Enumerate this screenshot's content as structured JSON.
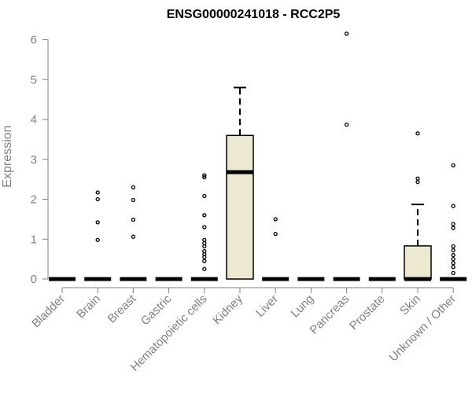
{
  "chart_data": {
    "type": "box",
    "title": "ENSG00000241018 - RCC2P5",
    "ylabel": "Expression",
    "xlabel": "",
    "ylim": [
      0,
      6.2
    ],
    "yticks": [
      0,
      1,
      2,
      3,
      4,
      5,
      6
    ],
    "grid": false,
    "box_fill": "#EDE8D0",
    "categories": [
      "Bladder",
      "Brain",
      "Breast",
      "Gastric",
      "Hematopoietic cells",
      "Kidney",
      "Liver",
      "Lung",
      "Pancreas",
      "Prostate",
      "Skin",
      "Unknown / Other"
    ],
    "series": [
      {
        "category": "Bladder",
        "q1": 0,
        "median": 0,
        "q3": 0,
        "whisker_low": 0,
        "whisker_high": 0,
        "outliers": []
      },
      {
        "category": "Brain",
        "q1": 0,
        "median": 0,
        "q3": 0,
        "whisker_low": 0,
        "whisker_high": 0,
        "outliers": [
          0.98,
          1.42,
          2.0,
          2.17
        ]
      },
      {
        "category": "Breast",
        "q1": 0,
        "median": 0,
        "q3": 0,
        "whisker_low": 0,
        "whisker_high": 0,
        "outliers": [
          1.06,
          1.49,
          1.98,
          2.3
        ]
      },
      {
        "category": "Gastric",
        "q1": 0,
        "median": 0,
        "q3": 0,
        "whisker_low": 0,
        "whisker_high": 0,
        "outliers": []
      },
      {
        "category": "Hematopoietic cells",
        "q1": 0,
        "median": 0,
        "q3": 0,
        "whisker_low": 0,
        "whisker_high": 0,
        "outliers": [
          0.25,
          0.45,
          0.55,
          0.62,
          0.7,
          0.82,
          0.9,
          0.98,
          1.3,
          1.6,
          2.08,
          2.55,
          2.6
        ]
      },
      {
        "category": "Kidney",
        "q1": 0,
        "median": 2.68,
        "q3": 3.6,
        "whisker_low": 0,
        "whisker_high": 4.8,
        "outliers": []
      },
      {
        "category": "Liver",
        "q1": 0,
        "median": 0,
        "q3": 0,
        "whisker_low": 0,
        "whisker_high": 0,
        "outliers": [
          1.13,
          1.5
        ]
      },
      {
        "category": "Lung",
        "q1": 0,
        "median": 0,
        "q3": 0,
        "whisker_low": 0,
        "whisker_high": 0,
        "outliers": []
      },
      {
        "category": "Pancreas",
        "q1": 0,
        "median": 0,
        "q3": 0,
        "whisker_low": 0,
        "whisker_high": 0,
        "outliers": [
          3.87,
          6.15
        ]
      },
      {
        "category": "Prostate",
        "q1": 0,
        "median": 0,
        "q3": 0,
        "whisker_low": 0,
        "whisker_high": 0,
        "outliers": []
      },
      {
        "category": "Skin",
        "q1": 0,
        "median": 0,
        "q3": 0.83,
        "whisker_low": 0,
        "whisker_high": 1.87,
        "outliers": [
          2.43,
          2.52,
          3.65
        ]
      },
      {
        "category": "Unknown / Other",
        "q1": 0,
        "median": 0,
        "q3": 0,
        "whisker_low": 0,
        "whisker_high": 0,
        "outliers": [
          0.15,
          0.3,
          0.4,
          0.5,
          0.6,
          0.72,
          0.82,
          1.28,
          1.38,
          1.83,
          2.85
        ]
      }
    ]
  }
}
